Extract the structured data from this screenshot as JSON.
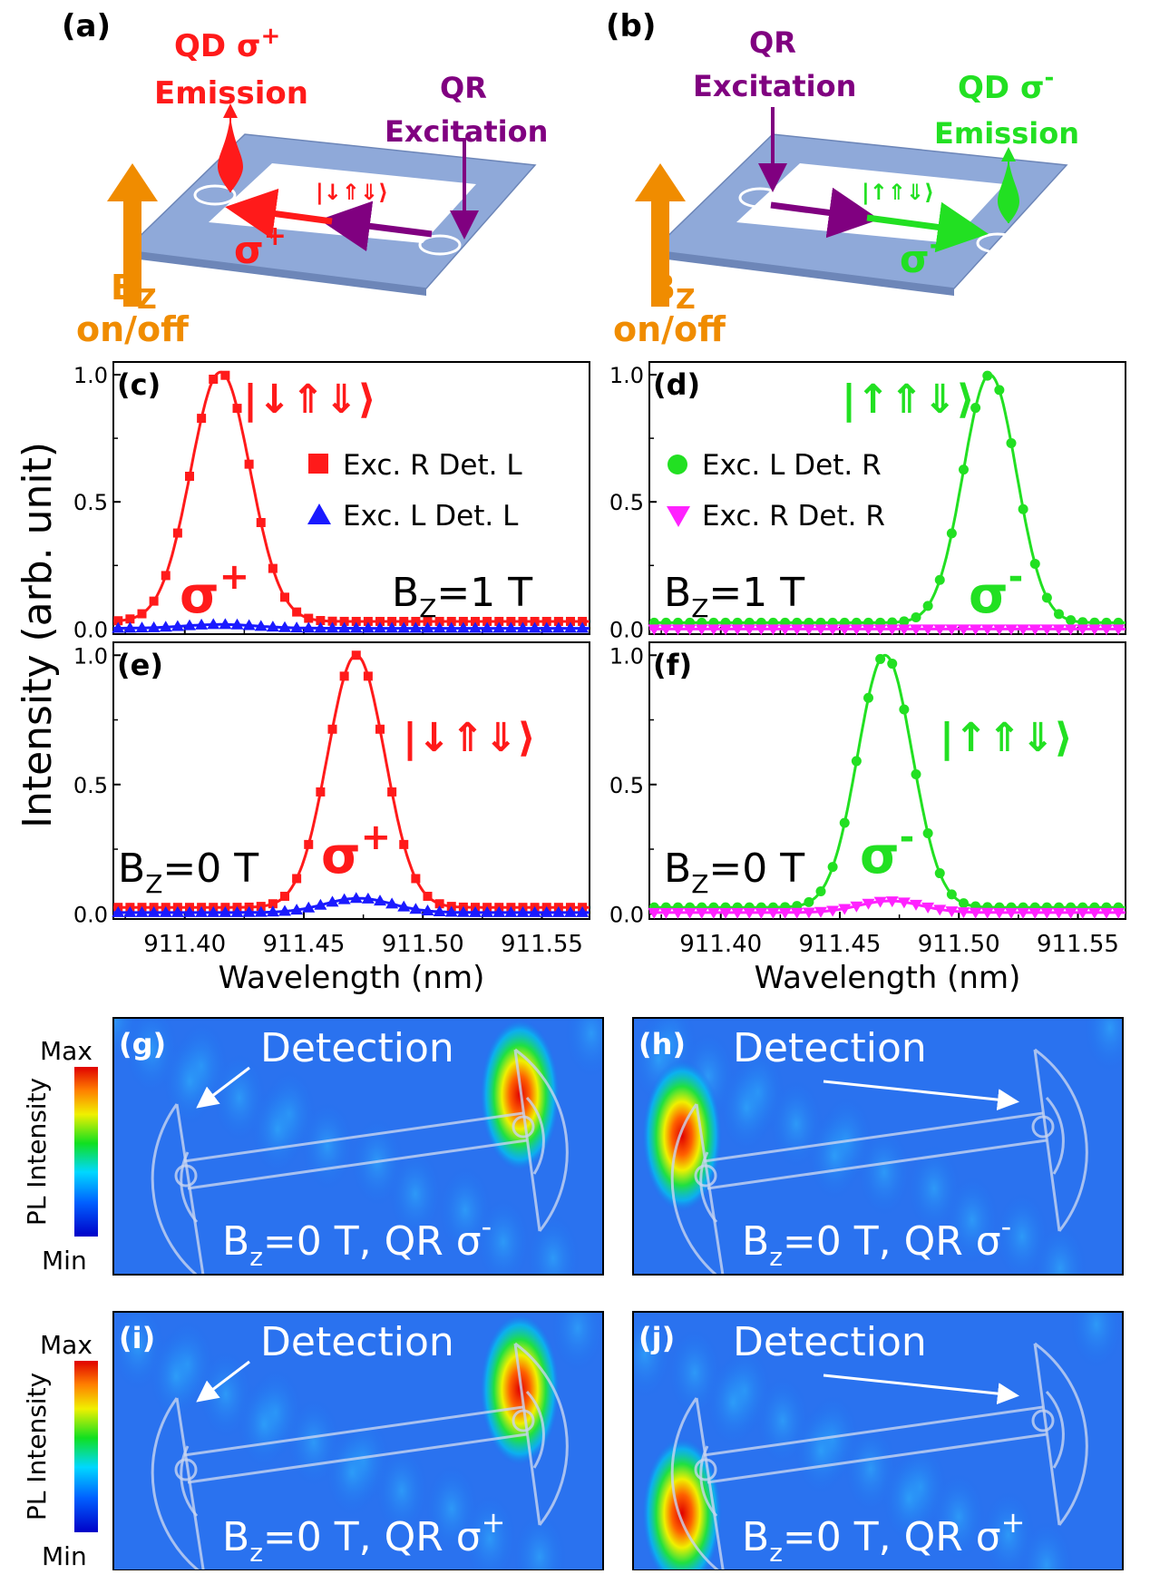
{
  "schematics": {
    "a": {
      "label": "(a)",
      "emission_title": "QD σ",
      "emission_sup": "+",
      "emission_word": "Emission",
      "excitation_line1": "QR",
      "excitation_line2": "Excitation",
      "state": "|↓⇑⇓⟩",
      "sigma": "σ",
      "sigma_sup": "+",
      "b_label": "B",
      "b_sub": "Z",
      "onoff": "on/off"
    },
    "b": {
      "label": "(b)",
      "emission_title": "QD σ",
      "emission_sup": "-",
      "emission_word": "Emission",
      "excitation_line1": "QR",
      "excitation_line2": "Excitation",
      "state": "|↑⇑⇓⟩",
      "sigma": "σ",
      "sigma_sup": "-",
      "b_label": "B",
      "b_sub": "Z",
      "onoff": "on/off"
    }
  },
  "colors": {
    "red": "#ff1a1a",
    "green": "#22e022",
    "blue": "#1a1aff",
    "magenta": "#ff22ff",
    "purple": "#800080",
    "orange": "#f08c00",
    "device": "#8fa9d9"
  },
  "chart_data": [
    {
      "panel": "(c)",
      "type": "line",
      "ylabel": "Intensity (arb. unit)",
      "xlim": [
        911.37,
        911.57
      ],
      "ylim": [
        -0.02,
        1.05
      ],
      "yticks": [
        "0.0",
        "0.5",
        "1.0"
      ],
      "state": "|↓⇑⇓⟩",
      "sigma": "σ",
      "sigma_sup": "+",
      "field": "B",
      "field_sub": "Z",
      "field_val": "=1 T",
      "series": [
        {
          "name": "Exc. R Det. L",
          "marker": "square",
          "color": "#ff1a1a",
          "center": 911.415,
          "width": 0.0125,
          "amp": 0.98,
          "base": 0.03
        },
        {
          "name": "Exc. L Det. L",
          "marker": "triangle-up",
          "color": "#1a1aff",
          "center": 911.415,
          "width": 0.015,
          "amp": 0.015,
          "base": 0.003
        }
      ]
    },
    {
      "panel": "(d)",
      "type": "line",
      "xlim": [
        911.37,
        911.57
      ],
      "ylim": [
        -0.02,
        1.05
      ],
      "yticks": [
        "0.0",
        "0.5",
        "1.0"
      ],
      "state": "|↑⇑⇓⟩",
      "sigma": "σ",
      "sigma_sup": "-",
      "field": "B",
      "field_sub": "Z",
      "field_val": "=1 T",
      "series": [
        {
          "name": "Exc. L Det. R",
          "marker": "circle",
          "color": "#22e022",
          "center": 911.513,
          "width": 0.0112,
          "amp": 0.975,
          "base": 0.025
        },
        {
          "name": "Exc. R Det. R",
          "marker": "triangle-down",
          "color": "#ff22ff",
          "center": 911.5,
          "width": 0.02,
          "amp": 0.0,
          "base": 0.0
        }
      ]
    },
    {
      "panel": "(e)",
      "type": "line",
      "xlabel": "Wavelength (nm)",
      "xlim": [
        911.37,
        911.57
      ],
      "ylim": [
        -0.02,
        1.05
      ],
      "xticks": [
        "911.40",
        "911.45",
        "911.50",
        "911.55"
      ],
      "yticks": [
        "0.0",
        "0.5",
        "1.0"
      ],
      "state": "|↓⇑⇓⟩",
      "sigma": "σ",
      "sigma_sup": "+",
      "field": "B",
      "field_sub": "Z",
      "field_val": "=0 T",
      "series": [
        {
          "name": "Exc. R Det. L",
          "marker": "square",
          "color": "#ff1a1a",
          "center": 911.472,
          "width": 0.012,
          "amp": 0.975,
          "base": 0.025
        },
        {
          "name": "Exc. L Det. L",
          "marker": "triangle-up",
          "color": "#1a1aff",
          "center": 911.473,
          "width": 0.014,
          "amp": 0.055,
          "base": 0.005
        }
      ]
    },
    {
      "panel": "(f)",
      "type": "line",
      "xlabel": "Wavelength (nm)",
      "xlim": [
        911.37,
        911.57
      ],
      "ylim": [
        -0.02,
        1.05
      ],
      "xticks": [
        "911.40",
        "911.45",
        "911.50",
        "911.55"
      ],
      "yticks": [
        "0.0",
        "0.5",
        "1.0"
      ],
      "state": "|↑⇑⇓⟩",
      "sigma": "σ",
      "sigma_sup": "-",
      "field": "B",
      "field_sub": "Z",
      "field_val": "=0 T",
      "series": [
        {
          "name": "Exc. L Det. R",
          "marker": "circle",
          "color": "#22e022",
          "center": 911.469,
          "width": 0.0115,
          "amp": 0.975,
          "base": 0.025
        },
        {
          "name": "Exc. R Det. R",
          "marker": "triangle-down",
          "color": "#ff22ff",
          "center": 911.471,
          "width": 0.013,
          "amp": 0.045,
          "base": 0.005
        }
      ]
    }
  ],
  "maps": {
    "colorbar_title": "PL Intensity",
    "colorbar_max": "Max",
    "colorbar_min": "Min",
    "detection": "Detection",
    "panels": [
      {
        "label": "(g)",
        "text": "B",
        "sub": "z",
        "text2": "=0 T, QR σ",
        "sup": "-",
        "spot": "right"
      },
      {
        "label": "(h)",
        "text": "B",
        "sub": "z",
        "text2": "=0 T, QR σ",
        "sup": "-",
        "spot": "left"
      },
      {
        "label": "(i)",
        "text": "B",
        "sub": "z",
        "text2": "=0 T, QR σ",
        "sup": "+",
        "spot": "right"
      },
      {
        "label": "(j)",
        "text": "B",
        "sub": "z",
        "text2": "=0 T, QR σ",
        "sup": "+",
        "spot": "left"
      }
    ]
  }
}
